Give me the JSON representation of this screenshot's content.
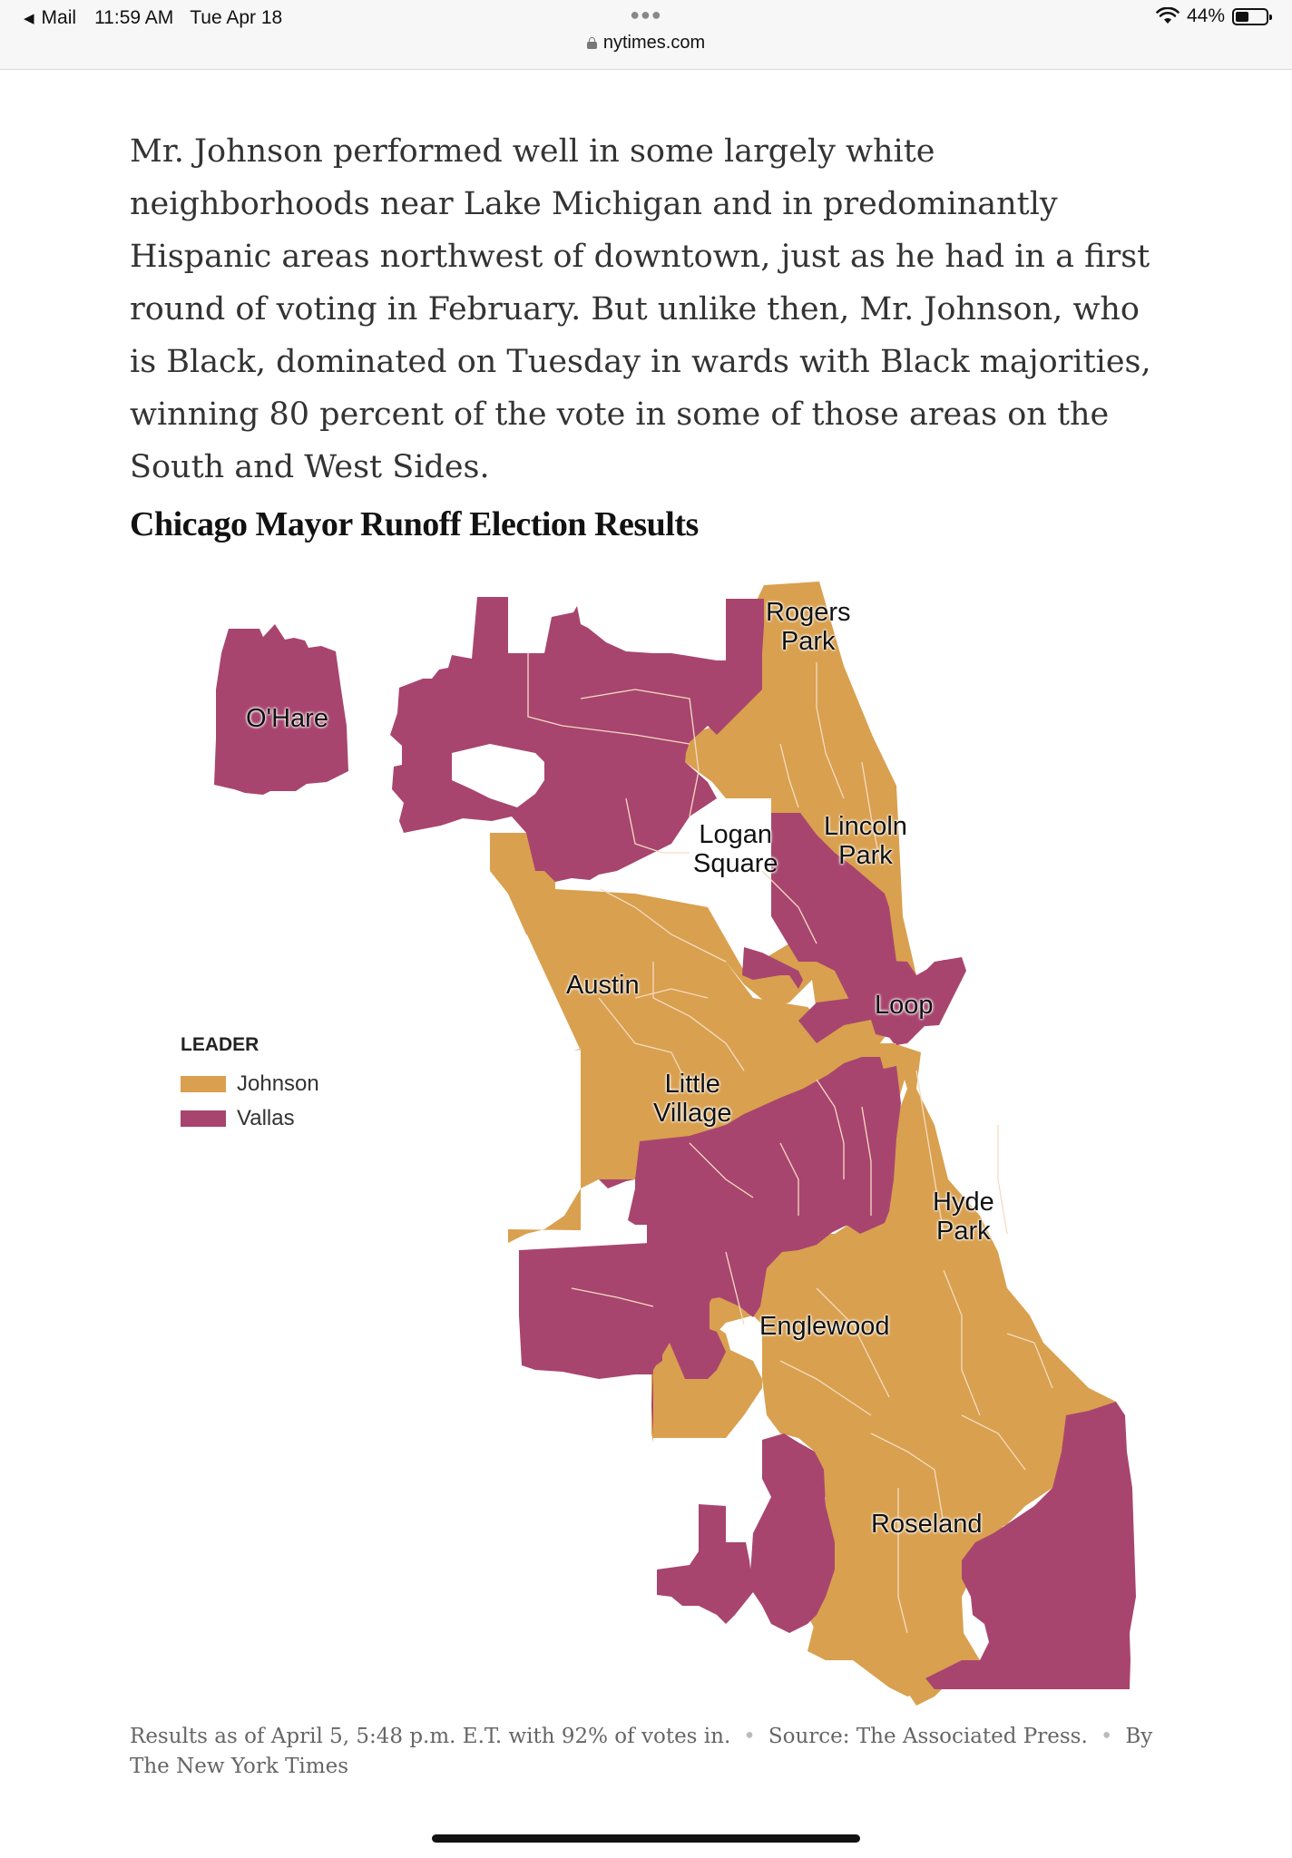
{
  "status_bar": {
    "back_app": "Mail",
    "time": "11:59 AM",
    "date": "Tue Apr 18",
    "url": "nytimes.com",
    "battery": "44%",
    "battery_level": 0.44
  },
  "article": {
    "paragraph": "Mr. Johnson performed well in some largely white neighborhoods near Lake Michigan and in predominantly Hispanic areas northwest of downtown, just as he had in a first round of voting in February. But unlike then, Mr. Johnson, who is Black, dominated on Tuesday in wards with Black majorities, winning 80 percent of the vote in some of those areas on the South and West Sides."
  },
  "map": {
    "title": "Chicago Mayor Runoff Election Results",
    "colors": {
      "johnson": "#d9a04f",
      "vallas": "#a8456f",
      "ward_border": "#f4dcc0"
    },
    "neighborhoods": {
      "ohare": "O'Hare",
      "rogers_park_1": "Rogers",
      "rogers_park_2": "Park",
      "lincoln_park_1": "Lincoln",
      "lincoln_park_2": "Park",
      "logan_square_1": "Logan",
      "logan_square_2": "Square",
      "austin": "Austin",
      "loop": "Loop",
      "little_village_1": "Little",
      "little_village_2": "Village",
      "hyde_park_1": "Hyde",
      "hyde_park_2": "Park",
      "englewood": "Englewood",
      "roseland": "Roseland"
    },
    "legend": {
      "title": "LEADER",
      "items": [
        {
          "label": "Johnson",
          "color": "#d9a04f"
        },
        {
          "label": "Vallas",
          "color": "#a8456f"
        }
      ]
    },
    "footnote": {
      "results": "Results as of April 5, 5:48 p.m. E.T. with 92% of votes in.",
      "source": "Source: The Associated Press.",
      "byline": "By The New York Times"
    }
  }
}
